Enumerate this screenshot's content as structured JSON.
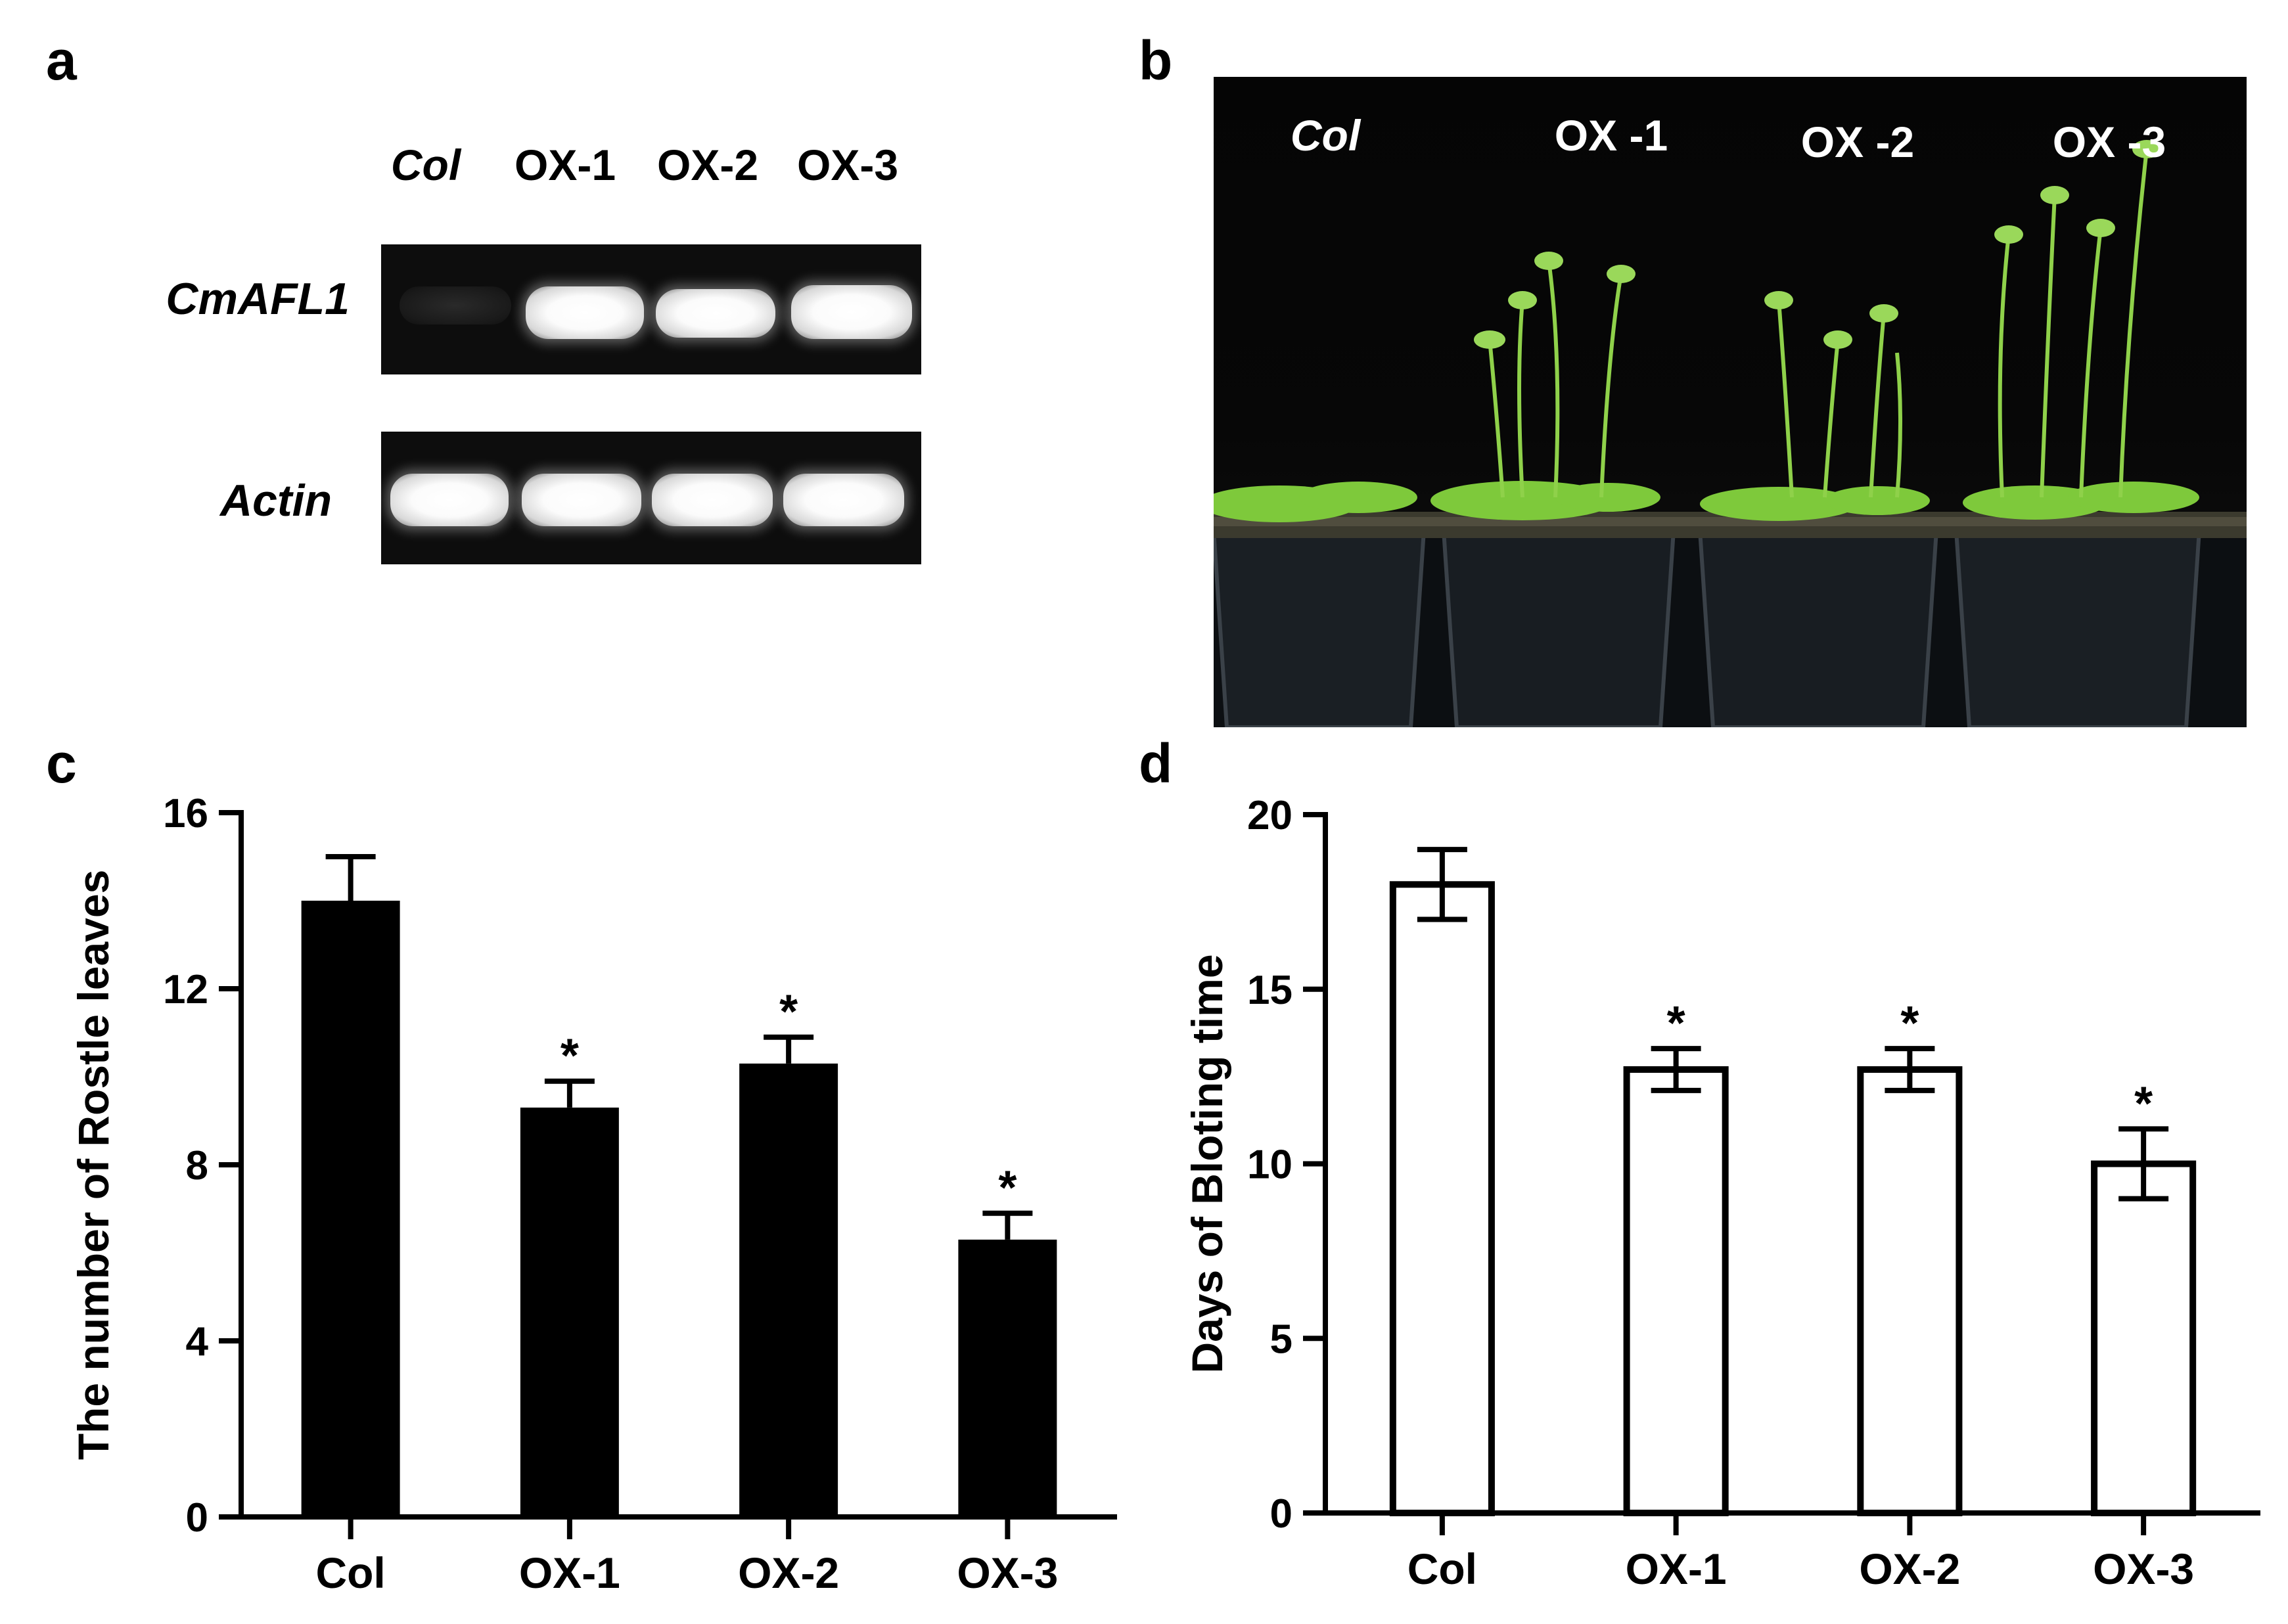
{
  "panels": {
    "a": {
      "letter": "a",
      "lanes": [
        "Col",
        "OX-1",
        "OX-2",
        "OX-3"
      ],
      "genes": [
        "CmAFL1",
        "Actin"
      ],
      "band_intensity": {
        "CmAFL1": [
          0.05,
          1.0,
          1.0,
          1.0
        ],
        "Actin": [
          1.0,
          1.0,
          1.0,
          1.0
        ]
      }
    },
    "b": {
      "letter": "b",
      "labels": [
        "Col",
        "OX -1",
        "OX -2",
        "OX -3"
      ]
    },
    "c": {
      "letter": "c"
    },
    "d": {
      "letter": "d"
    }
  },
  "chart_data": [
    {
      "panel": "c",
      "type": "bar",
      "categories": [
        "Col",
        "OX-1",
        "OX-2",
        "OX-3"
      ],
      "series": [
        {
          "values": [
            14,
            9.3,
            10.3,
            6.3
          ],
          "error": [
            1.0,
            0.6,
            0.6,
            0.6
          ]
        }
      ],
      "significance": [
        "",
        "*",
        "*",
        "*"
      ],
      "ylabel": "The number of Rostle leaves",
      "ylim": [
        0,
        16
      ],
      "yticks": [
        0,
        4,
        8,
        12,
        16
      ],
      "bar_style": "filled",
      "bar_color": "#000000"
    },
    {
      "panel": "d",
      "type": "bar",
      "categories": [
        "Col",
        "OX-1",
        "OX-2",
        "OX-3"
      ],
      "series": [
        {
          "values": [
            18,
            12.7,
            12.7,
            10
          ],
          "error": [
            1.0,
            0.6,
            0.6,
            1.0
          ]
        }
      ],
      "significance": [
        "",
        "*",
        "*",
        "*"
      ],
      "ylabel": "Days of Bloting time",
      "ylim": [
        0,
        20
      ],
      "yticks": [
        0,
        5,
        10,
        15,
        20
      ],
      "bar_style": "outline",
      "bar_color": "#000000"
    }
  ]
}
